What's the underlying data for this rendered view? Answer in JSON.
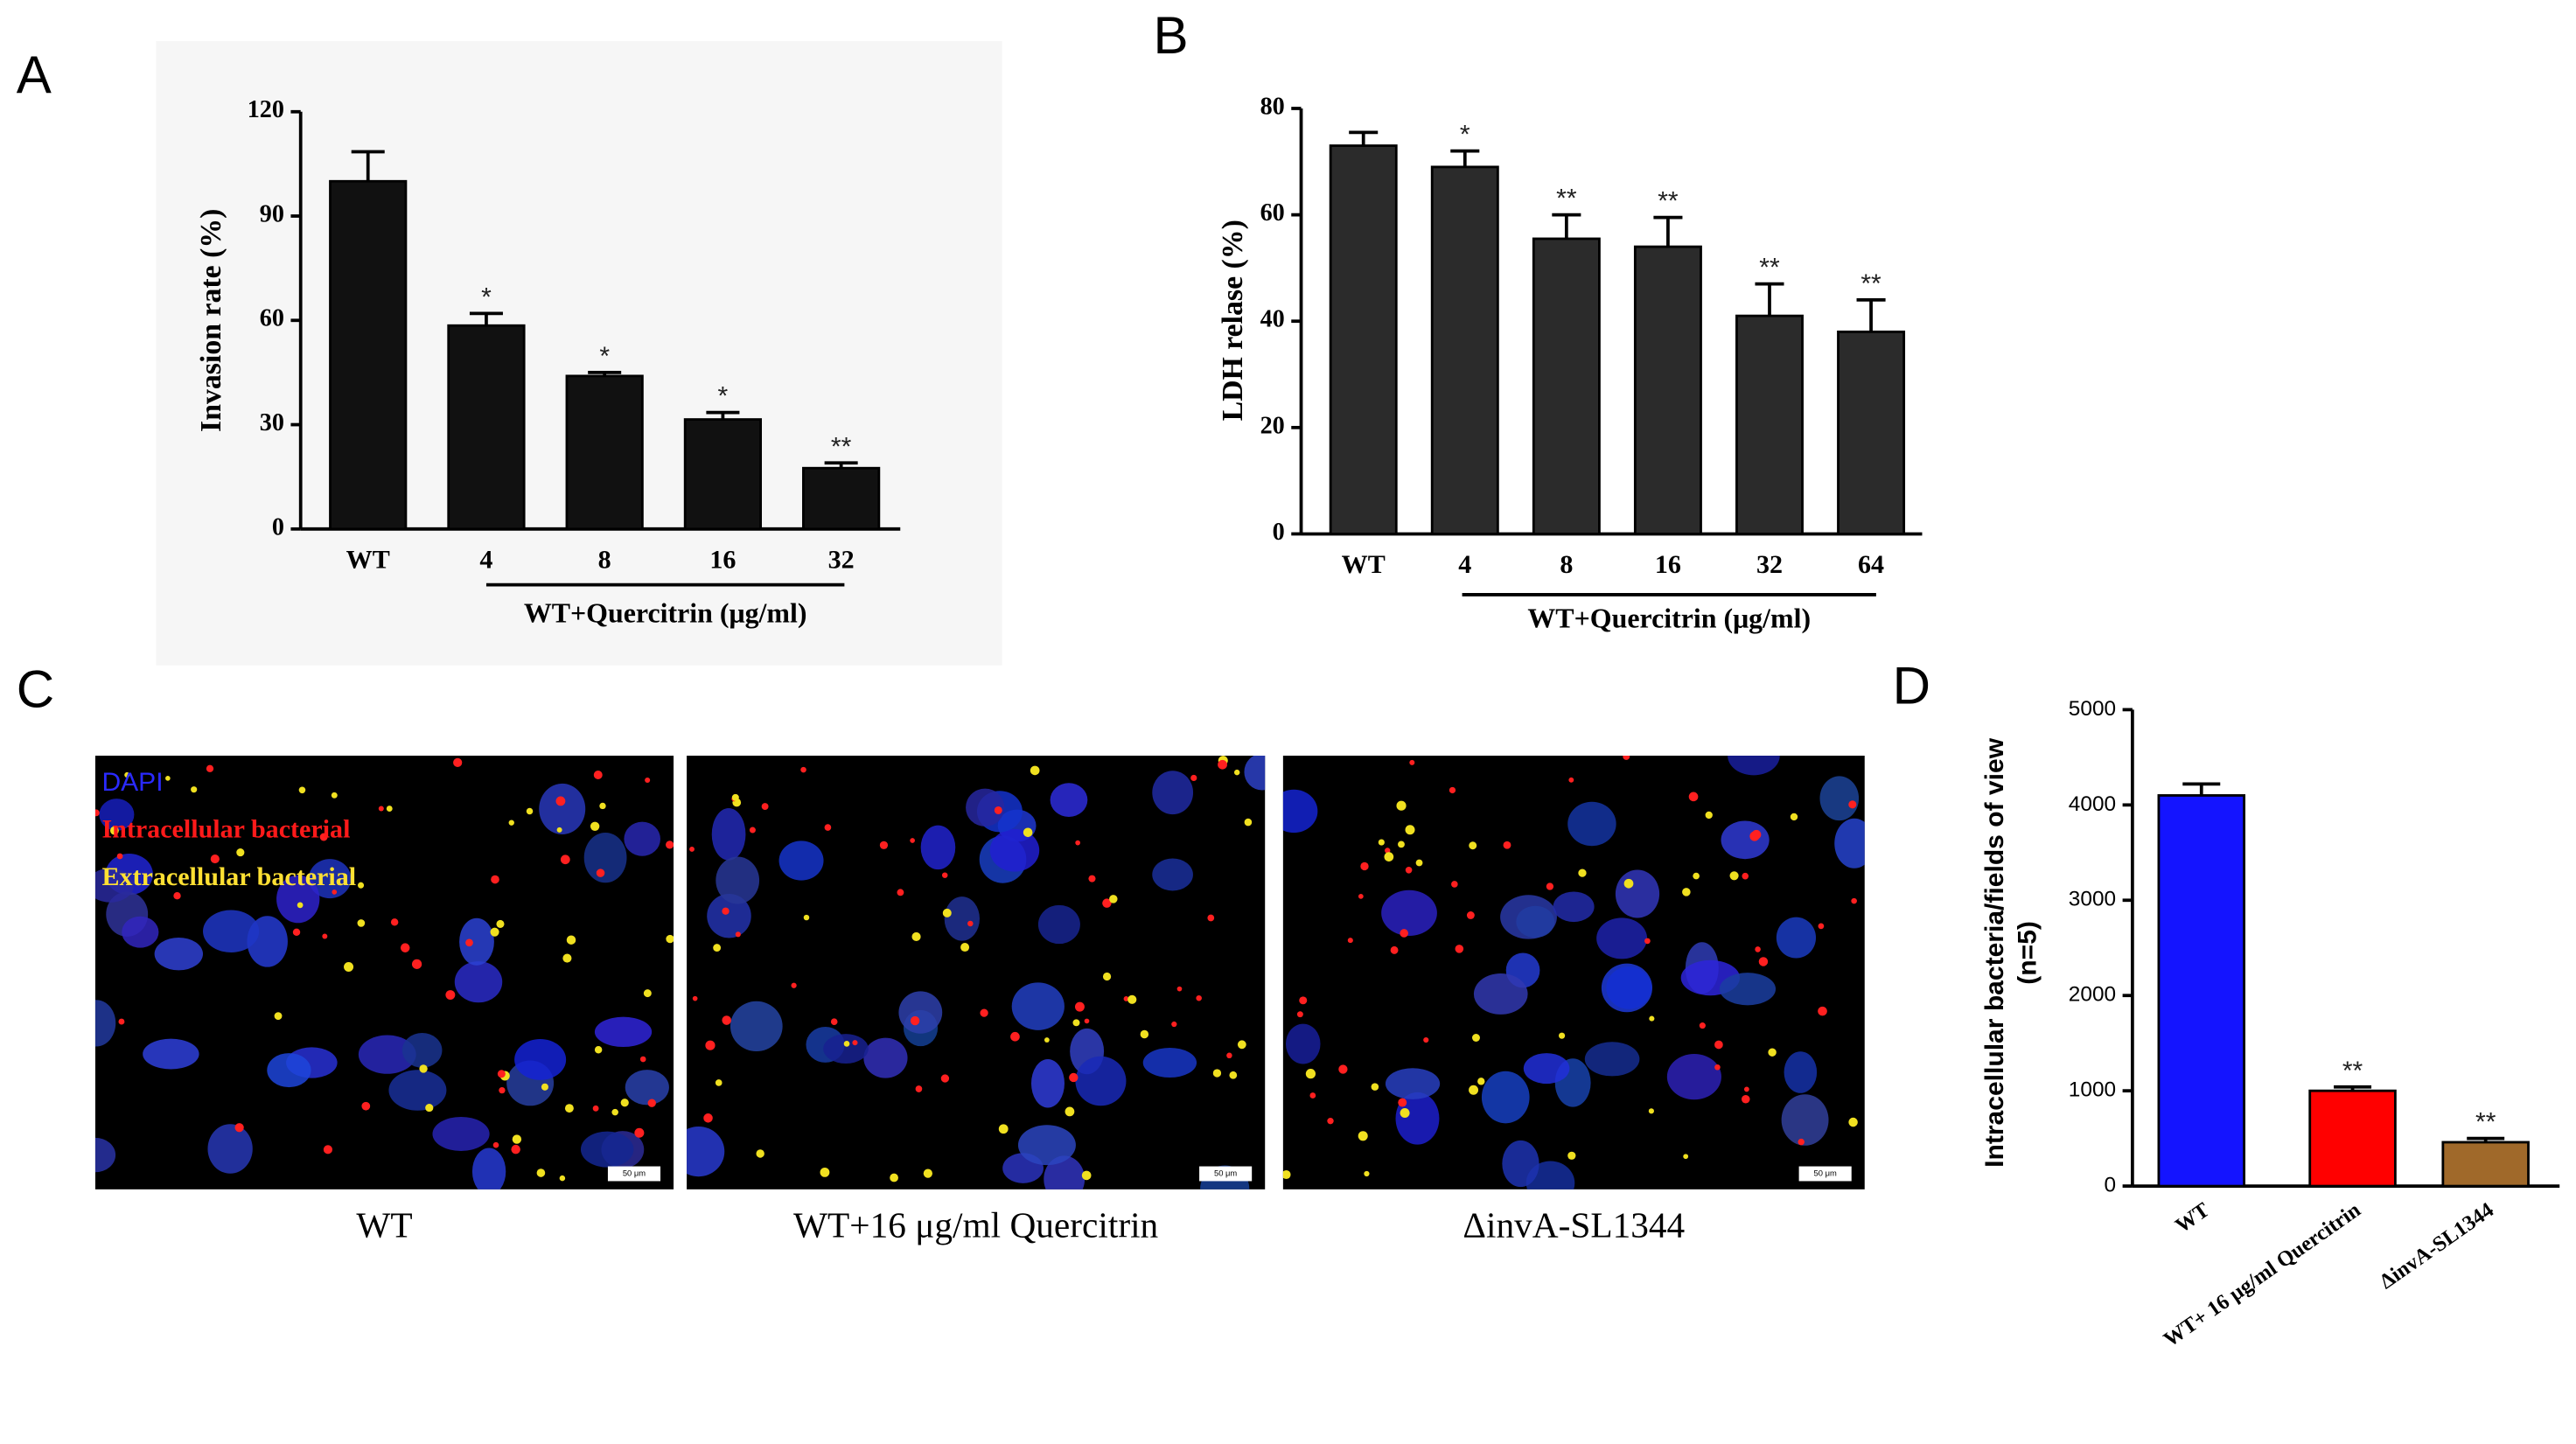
{
  "chart_data": [
    {
      "type": "bar",
      "panel_label": "A",
      "ylabel": "Invasion rate (%)",
      "categories": [
        "WT",
        "4",
        "8",
        "16",
        "32"
      ],
      "values": [
        100,
        58.5,
        44,
        31.5,
        17.5
      ],
      "errors": [
        8.5,
        3.5,
        1,
        2,
        1.5
      ],
      "annotations": [
        null,
        "*",
        "*",
        "*",
        "**"
      ],
      "group_label": "WT+Quercitrin (μg/ml)",
      "color": "#111111",
      "ylim": [
        0,
        120
      ],
      "yticks": [
        0,
        30,
        60,
        90,
        120
      ]
    },
    {
      "type": "bar",
      "panel_label": "B",
      "ylabel": "LDH relase (%)",
      "categories": [
        "WT",
        "4",
        "8",
        "16",
        "32",
        "64"
      ],
      "values": [
        73,
        69,
        55.5,
        54,
        41,
        38
      ],
      "errors": [
        2.5,
        3,
        4.5,
        5.5,
        6,
        6
      ],
      "annotations": [
        null,
        "*",
        "**",
        "**",
        "**",
        "**"
      ],
      "group_label": "WT+Quercitrin (μg/ml)",
      "color": "#2b2b2b",
      "ylim": [
        0,
        80
      ],
      "yticks": [
        0,
        20,
        40,
        60,
        80
      ]
    },
    {
      "type": "bar",
      "panel_label": "D",
      "ylabel": [
        "Intracellular bacteria/fields of view",
        "(n=5)"
      ],
      "categories": [
        "WT",
        "WT+ 16 μg/ml Quercitrin",
        "ΔinvA-SL1344"
      ],
      "values": [
        4100,
        1000,
        460
      ],
      "errors": [
        120,
        40,
        40
      ],
      "annotations": [
        null,
        "**",
        "**"
      ],
      "colors": [
        "#1414ff",
        "#ff0000",
        "#a0692a"
      ],
      "ylim": [
        0,
        5000
      ],
      "yticks": [
        0,
        1000,
        2000,
        3000,
        4000,
        5000
      ]
    }
  ],
  "micrographs": {
    "panel_label": "C",
    "legend": [
      "DAPI",
      "Intracellular bacterial",
      "Extracellular bacterial"
    ],
    "captions": [
      "WT",
      "WT+16 μg/ml Quercitrin",
      "ΔinvA-SL1344"
    ],
    "scale_bar": "50 μm"
  }
}
